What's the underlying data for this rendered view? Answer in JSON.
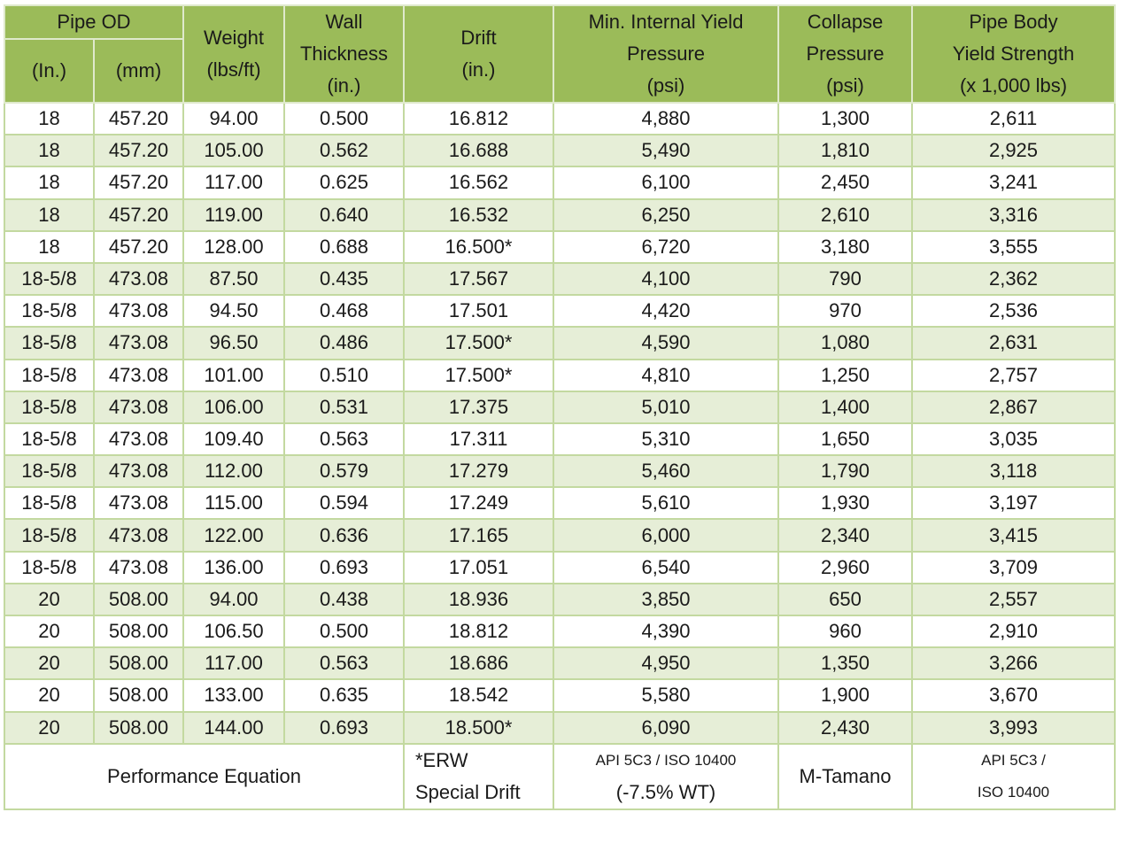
{
  "header": {
    "pipe_od": "Pipe OD",
    "od_in": "(In.)",
    "od_mm": "(mm)",
    "weight": [
      "Weight",
      "(lbs/ft)"
    ],
    "wall": [
      "Wall",
      "Thickness",
      "(in.)"
    ],
    "drift": [
      "Drift",
      "(in.)"
    ],
    "miyp": [
      "Min. Internal Yield",
      "Pressure",
      "(psi)"
    ],
    "collapse": [
      "Collapse",
      "Pressure",
      "(psi)"
    ],
    "yield": [
      "Pipe Body",
      "Yield Strength",
      "(x 1,000 lbs)"
    ]
  },
  "rows": [
    [
      "18",
      "457.20",
      "94.00",
      "0.500",
      "16.812",
      "4,880",
      "1,300",
      "2,611"
    ],
    [
      "18",
      "457.20",
      "105.00",
      "0.562",
      "16.688",
      "5,490",
      "1,810",
      "2,925"
    ],
    [
      "18",
      "457.20",
      "117.00",
      "0.625",
      "16.562",
      "6,100",
      "2,450",
      "3,241"
    ],
    [
      "18",
      "457.20",
      "119.00",
      "0.640",
      "16.532",
      "6,250",
      "2,610",
      "3,316"
    ],
    [
      "18",
      "457.20",
      "128.00",
      "0.688",
      "16.500*",
      "6,720",
      "3,180",
      "3,555"
    ],
    [
      "18-5/8",
      "473.08",
      "87.50",
      "0.435",
      "17.567",
      "4,100",
      "790",
      "2,362"
    ],
    [
      "18-5/8",
      "473.08",
      "94.50",
      "0.468",
      "17.501",
      "4,420",
      "970",
      "2,536"
    ],
    [
      "18-5/8",
      "473.08",
      "96.50",
      "0.486",
      "17.500*",
      "4,590",
      "1,080",
      "2,631"
    ],
    [
      "18-5/8",
      "473.08",
      "101.00",
      "0.510",
      "17.500*",
      "4,810",
      "1,250",
      "2,757"
    ],
    [
      "18-5/8",
      "473.08",
      "106.00",
      "0.531",
      "17.375",
      "5,010",
      "1,400",
      "2,867"
    ],
    [
      "18-5/8",
      "473.08",
      "109.40",
      "0.563",
      "17.311",
      "5,310",
      "1,650",
      "3,035"
    ],
    [
      "18-5/8",
      "473.08",
      "112.00",
      "0.579",
      "17.279",
      "5,460",
      "1,790",
      "3,118"
    ],
    [
      "18-5/8",
      "473.08",
      "115.00",
      "0.594",
      "17.249",
      "5,610",
      "1,930",
      "3,197"
    ],
    [
      "18-5/8",
      "473.08",
      "122.00",
      "0.636",
      "17.165",
      "6,000",
      "2,340",
      "3,415"
    ],
    [
      "18-5/8",
      "473.08",
      "136.00",
      "0.693",
      "17.051",
      "6,540",
      "2,960",
      "3,709"
    ],
    [
      "20",
      "508.00",
      "94.00",
      "0.438",
      "18.936",
      "3,850",
      "650",
      "2,557"
    ],
    [
      "20",
      "508.00",
      "106.50",
      "0.500",
      "18.812",
      "4,390",
      "960",
      "2,910"
    ],
    [
      "20",
      "508.00",
      "117.00",
      "0.563",
      "18.686",
      "4,950",
      "1,350",
      "3,266"
    ],
    [
      "20",
      "508.00",
      "133.00",
      "0.635",
      "18.542",
      "5,580",
      "1,900",
      "3,670"
    ],
    [
      "20",
      "508.00",
      "144.00",
      "0.693",
      "18.500*",
      "6,090",
      "2,430",
      "3,993"
    ]
  ],
  "footer": {
    "label": "Performance Equation",
    "drift_note": [
      "*ERW",
      "Special Drift"
    ],
    "miyp_eq": [
      "API 5C3 / ISO  10400",
      "(-7.5% WT)"
    ],
    "collapse_eq": "M-Tamano",
    "yield_eq": [
      "API 5C3 /",
      "ISO  10400"
    ]
  },
  "colors": {
    "header": "#9bbb59",
    "alt_row": "#e6eed7",
    "border": "#c3d9a0"
  }
}
